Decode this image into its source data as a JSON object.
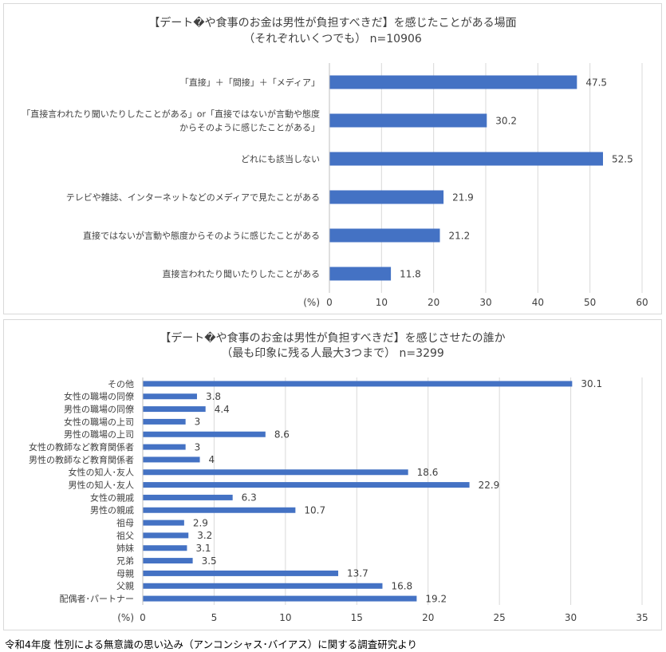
{
  "charts": [
    {
      "title_line1": "【デート�や食事のお金は男性が負担すべきだ】を感じたことがある場面",
      "title_line2": "（それぞれいくつでも） n=10906",
      "unit_label": "(%)"
    },
    {
      "title_line1": "【デート�や食事のお金は男性が負担すべきだ】を感じさせたの誰か",
      "title_line2": "（最も印象に残る人最大3つまで） n=3299",
      "unit_label": "(%)"
    }
  ],
  "source": "令和4年度 性別による無意識の思い込み（アンコンシャス･バイアス）に関する調査研究より",
  "colors": {
    "bar": "#4472c4",
    "grid": "#d9d9d9"
  },
  "chart_data": [
    {
      "type": "bar",
      "orientation": "horizontal",
      "title": "【デートや食事のお金は男性が負担すべきだ】を感じたことがある場面（それぞれいくつでも） n=10906",
      "categories": [
        [
          "「直接」＋「間接」＋「メディア」"
        ],
        [
          "「直接言われたり聞いたりしたことがある」or「直接ではないが言動や態度",
          "からそのように感じたことがある」"
        ],
        [
          "どれにも該当しない"
        ],
        [
          "テレビや雑誌、インターネットなどのメディアで見たことがある"
        ],
        [
          "直接ではないが言動や態度からそのように感じたことがある"
        ],
        [
          "直接言われたり聞いたりしたことがある"
        ]
      ],
      "values": [
        47.5,
        30.2,
        52.5,
        21.9,
        21.2,
        11.8
      ],
      "value_labels": [
        "47.5",
        "30.2",
        "52.5",
        "21.9",
        "21.2",
        "11.8"
      ],
      "xticks": [
        "0",
        "10",
        "20",
        "30",
        "40",
        "50",
        "60"
      ],
      "xlim": [
        0,
        60
      ],
      "xlabel": "(%)",
      "grid": true
    },
    {
      "type": "bar",
      "orientation": "horizontal",
      "title": "【デートや食事のお金は男性が負担すべきだ】を感じさせたの誰か（最も印象に残る人最大3つまで） n=3299",
      "categories": [
        [
          "その他"
        ],
        [
          "女性の職場の同僚"
        ],
        [
          "男性の職場の同僚"
        ],
        [
          "女性の職場の上司"
        ],
        [
          "男性の職場の上司"
        ],
        [
          "女性の教師など教育関係者"
        ],
        [
          "男性の教師など教育関係者"
        ],
        [
          "女性の知人･友人"
        ],
        [
          "男性の知人･友人"
        ],
        [
          "女性の親戚"
        ],
        [
          "男性の親戚"
        ],
        [
          "祖母"
        ],
        [
          "祖父"
        ],
        [
          "姉妹"
        ],
        [
          "兄弟"
        ],
        [
          "母親"
        ],
        [
          "父親"
        ],
        [
          "配偶者･パートナー"
        ]
      ],
      "values": [
        30.1,
        3.8,
        4.4,
        3,
        8.6,
        3,
        4,
        18.6,
        22.9,
        6.3,
        10.7,
        2.9,
        3.2,
        3.1,
        3.5,
        13.7,
        16.8,
        19.2
      ],
      "value_labels": [
        "30.1",
        "3.8",
        "4.4",
        "3",
        "8.6",
        "3",
        "4",
        "18.6",
        "22.9",
        "6.3",
        "10.7",
        "2.9",
        "3.2",
        "3.1",
        "3.5",
        "13.7",
        "16.8",
        "19.2"
      ],
      "xticks": [
        "0",
        "5",
        "10",
        "15",
        "20",
        "25",
        "30",
        "35"
      ],
      "xlim": [
        0,
        35
      ],
      "xlabel": "(%)",
      "grid": true
    }
  ]
}
